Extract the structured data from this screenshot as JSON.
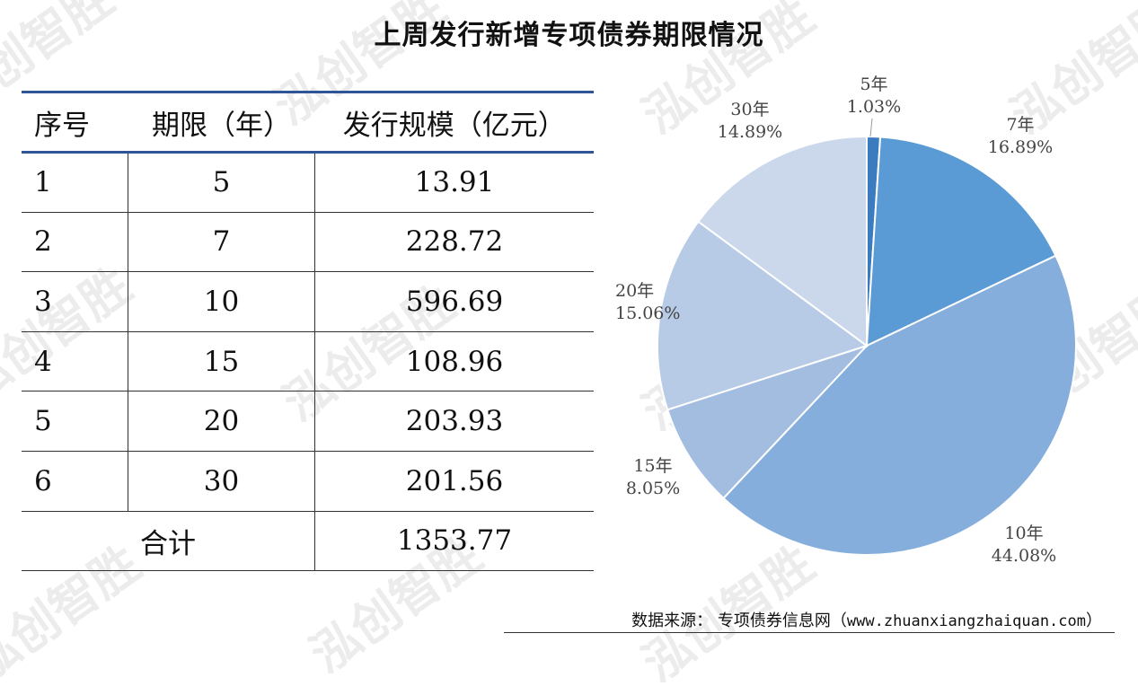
{
  "title": "上周发行新增专项债券期限情况",
  "watermark_text": "泓创智胜",
  "table": {
    "headers": [
      "序号",
      "期限（年）",
      "发行规模（亿元）"
    ],
    "rows": [
      [
        "1",
        "5",
        "13.91"
      ],
      [
        "2",
        "7",
        "228.72"
      ],
      [
        "3",
        "10",
        "596.69"
      ],
      [
        "4",
        "15",
        "108.96"
      ],
      [
        "5",
        "20",
        "203.93"
      ],
      [
        "6",
        "30",
        "201.56"
      ]
    ],
    "total_label": "合计",
    "total_value": "1353.77"
  },
  "chart_data": {
    "type": "pie",
    "slices": [
      {
        "label": "5年",
        "percent_text": "1.03%",
        "value": 1.03,
        "color": "#3b7bbf"
      },
      {
        "label": "7年",
        "percent_text": "16.89%",
        "value": 16.89,
        "color": "#5b9bd5"
      },
      {
        "label": "10年",
        "percent_text": "44.08%",
        "value": 44.08,
        "color": "#85aedd"
      },
      {
        "label": "15年",
        "percent_text": "8.05%",
        "value": 8.05,
        "color": "#a3bde1"
      },
      {
        "label": "20年",
        "percent_text": "15.06%",
        "value": 15.06,
        "color": "#b7cbe7"
      },
      {
        "label": "30年",
        "percent_text": "14.89%",
        "value": 14.89,
        "color": "#cbd8ec"
      }
    ],
    "start": "12 o'clock",
    "direction": "clockwise"
  },
  "source": {
    "label": "数据来源：",
    "text": "专项债券信息网（",
    "url": "www.zhuanxiangzhaiquan.com",
    "close": "）"
  }
}
